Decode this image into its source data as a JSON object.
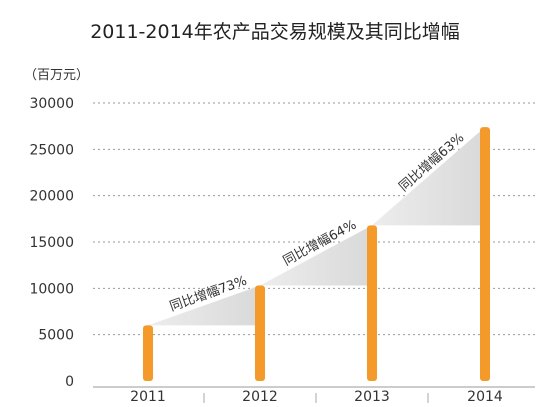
{
  "chart_data": {
    "type": "bar",
    "title": "2011-2014年农产品交易规模及其同比增幅",
    "unit_label": "（百万元）",
    "categories": [
      "2011",
      "2012",
      "2013",
      "2014"
    ],
    "values": [
      6000,
      10300,
      16800,
      27400
    ],
    "ylim": [
      0,
      30000
    ],
    "yticks": [
      0,
      5000,
      10000,
      15000,
      20000,
      25000,
      30000
    ],
    "grid": true,
    "grid_style": "dotted",
    "xlabel": "",
    "ylabel": "",
    "bar_color": "#F39A2B",
    "growth_wedge_color": "#D9D9D9",
    "annotations": [
      {
        "from": "2011",
        "to": "2012",
        "label": "同比增幅73%"
      },
      {
        "from": "2012",
        "to": "2013",
        "label": "同比增幅64%"
      },
      {
        "from": "2013",
        "to": "2014",
        "label": "同比增幅63%"
      }
    ]
  }
}
